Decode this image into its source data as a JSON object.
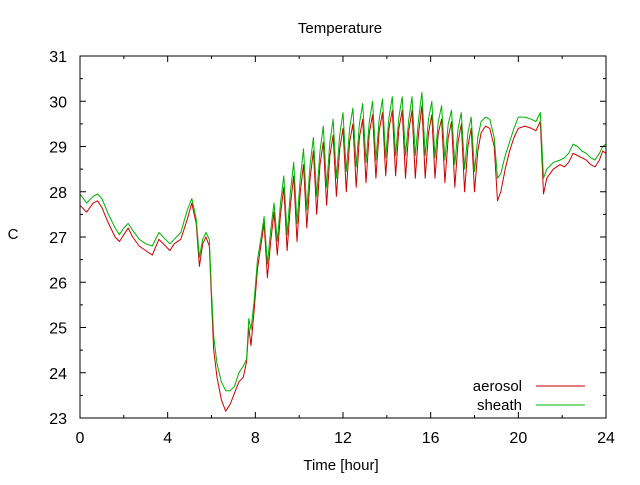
{
  "chart_data": {
    "type": "line",
    "title": "Temperature",
    "xlabel": "Time [hour]",
    "ylabel": "C",
    "xlim": [
      0,
      24
    ],
    "ylim": [
      23,
      31
    ],
    "x_ticks": [
      0,
      4,
      8,
      12,
      16,
      20,
      24
    ],
    "y_ticks": [
      23,
      24,
      25,
      26,
      27,
      28,
      29,
      30,
      31
    ],
    "grid": false,
    "legend_position": "bottom-right",
    "series": [
      {
        "name": "aerosol",
        "color": "#cc0000",
        "points": [
          [
            0,
            27.7
          ],
          [
            0.3,
            27.55
          ],
          [
            0.6,
            27.75
          ],
          [
            0.8,
            27.8
          ],
          [
            1.0,
            27.65
          ],
          [
            1.3,
            27.3
          ],
          [
            1.6,
            27.0
          ],
          [
            1.8,
            26.9
          ],
          [
            2.0,
            27.05
          ],
          [
            2.2,
            27.2
          ],
          [
            2.4,
            27.0
          ],
          [
            2.7,
            26.8
          ],
          [
            3.0,
            26.7
          ],
          [
            3.3,
            26.6
          ],
          [
            3.6,
            26.95
          ],
          [
            3.9,
            26.8
          ],
          [
            4.1,
            26.7
          ],
          [
            4.3,
            26.85
          ],
          [
            4.6,
            26.95
          ],
          [
            4.9,
            27.4
          ],
          [
            5.1,
            27.75
          ],
          [
            5.3,
            27.3
          ],
          [
            5.45,
            26.35
          ],
          [
            5.6,
            26.85
          ],
          [
            5.75,
            27.0
          ],
          [
            5.9,
            26.8
          ],
          [
            6.0,
            25.6
          ],
          [
            6.1,
            24.5
          ],
          [
            6.25,
            23.9
          ],
          [
            6.45,
            23.4
          ],
          [
            6.65,
            23.15
          ],
          [
            6.85,
            23.3
          ],
          [
            7.05,
            23.55
          ],
          [
            7.25,
            23.8
          ],
          [
            7.45,
            23.9
          ],
          [
            7.6,
            24.25
          ],
          [
            7.7,
            25.0
          ],
          [
            7.8,
            24.6
          ],
          [
            7.95,
            25.4
          ],
          [
            8.1,
            26.3
          ],
          [
            8.25,
            26.8
          ],
          [
            8.4,
            27.3
          ],
          [
            8.55,
            26.1
          ],
          [
            8.7,
            26.9
          ],
          [
            8.85,
            27.55
          ],
          [
            9.0,
            26.6
          ],
          [
            9.15,
            27.5
          ],
          [
            9.3,
            28.1
          ],
          [
            9.45,
            26.7
          ],
          [
            9.6,
            27.7
          ],
          [
            9.75,
            28.35
          ],
          [
            9.9,
            26.9
          ],
          [
            10.05,
            28.0
          ],
          [
            10.2,
            28.6
          ],
          [
            10.35,
            27.2
          ],
          [
            10.5,
            28.3
          ],
          [
            10.65,
            28.9
          ],
          [
            10.8,
            27.5
          ],
          [
            10.95,
            28.6
          ],
          [
            11.1,
            29.1
          ],
          [
            11.25,
            27.7
          ],
          [
            11.4,
            28.8
          ],
          [
            11.55,
            29.25
          ],
          [
            11.7,
            27.9
          ],
          [
            11.85,
            28.95
          ],
          [
            12.0,
            29.4
          ],
          [
            12.15,
            28.0
          ],
          [
            12.3,
            29.1
          ],
          [
            12.45,
            29.5
          ],
          [
            12.6,
            28.1
          ],
          [
            12.75,
            29.2
          ],
          [
            12.9,
            29.6
          ],
          [
            13.05,
            28.2
          ],
          [
            13.2,
            29.3
          ],
          [
            13.35,
            29.7
          ],
          [
            13.5,
            28.3
          ],
          [
            13.65,
            29.35
          ],
          [
            13.8,
            29.75
          ],
          [
            13.95,
            28.35
          ],
          [
            14.1,
            29.4
          ],
          [
            14.25,
            29.8
          ],
          [
            14.4,
            28.35
          ],
          [
            14.55,
            29.4
          ],
          [
            14.7,
            29.8
          ],
          [
            14.85,
            28.3
          ],
          [
            15.0,
            29.35
          ],
          [
            15.15,
            29.8
          ],
          [
            15.3,
            28.3
          ],
          [
            15.45,
            29.3
          ],
          [
            15.6,
            29.9
          ],
          [
            15.75,
            28.3
          ],
          [
            15.9,
            29.3
          ],
          [
            16.05,
            29.7
          ],
          [
            16.2,
            28.3
          ],
          [
            16.35,
            29.3
          ],
          [
            16.5,
            29.6
          ],
          [
            16.65,
            28.2
          ],
          [
            16.8,
            29.2
          ],
          [
            16.95,
            29.55
          ],
          [
            17.1,
            28.1
          ],
          [
            17.25,
            29.1
          ],
          [
            17.4,
            29.5
          ],
          [
            17.55,
            28.0
          ],
          [
            17.7,
            29.0
          ],
          [
            17.85,
            29.4
          ],
          [
            18.0,
            28.0
          ],
          [
            18.15,
            28.9
          ],
          [
            18.3,
            29.3
          ],
          [
            18.5,
            29.45
          ],
          [
            18.7,
            29.4
          ],
          [
            18.9,
            29.0
          ],
          [
            19.05,
            27.8
          ],
          [
            19.2,
            28.0
          ],
          [
            19.4,
            28.5
          ],
          [
            19.6,
            28.9
          ],
          [
            19.8,
            29.2
          ],
          [
            20.0,
            29.4
          ],
          [
            20.3,
            29.45
          ],
          [
            20.6,
            29.4
          ],
          [
            20.8,
            29.35
          ],
          [
            21.0,
            29.55
          ],
          [
            21.15,
            27.95
          ],
          [
            21.3,
            28.3
          ],
          [
            21.6,
            28.5
          ],
          [
            21.9,
            28.6
          ],
          [
            22.1,
            28.55
          ],
          [
            22.3,
            28.65
          ],
          [
            22.5,
            28.85
          ],
          [
            22.7,
            28.8
          ],
          [
            22.9,
            28.75
          ],
          [
            23.1,
            28.7
          ],
          [
            23.3,
            28.6
          ],
          [
            23.5,
            28.55
          ],
          [
            23.7,
            28.7
          ],
          [
            23.85,
            28.9
          ],
          [
            24.0,
            28.85
          ]
        ]
      },
      {
        "name": "sheath",
        "color": "#00b000",
        "points": [
          [
            0,
            27.95
          ],
          [
            0.3,
            27.75
          ],
          [
            0.6,
            27.9
          ],
          [
            0.8,
            27.95
          ],
          [
            1.0,
            27.85
          ],
          [
            1.3,
            27.5
          ],
          [
            1.6,
            27.2
          ],
          [
            1.8,
            27.05
          ],
          [
            2.0,
            27.2
          ],
          [
            2.2,
            27.3
          ],
          [
            2.4,
            27.15
          ],
          [
            2.7,
            26.95
          ],
          [
            3.0,
            26.85
          ],
          [
            3.3,
            26.8
          ],
          [
            3.6,
            27.1
          ],
          [
            3.9,
            26.95
          ],
          [
            4.1,
            26.85
          ],
          [
            4.3,
            26.95
          ],
          [
            4.6,
            27.1
          ],
          [
            4.9,
            27.6
          ],
          [
            5.1,
            27.85
          ],
          [
            5.3,
            27.4
          ],
          [
            5.45,
            26.55
          ],
          [
            5.6,
            26.95
          ],
          [
            5.75,
            27.1
          ],
          [
            5.9,
            26.95
          ],
          [
            6.0,
            25.8
          ],
          [
            6.1,
            24.8
          ],
          [
            6.25,
            24.2
          ],
          [
            6.45,
            23.8
          ],
          [
            6.65,
            23.6
          ],
          [
            6.85,
            23.6
          ],
          [
            7.05,
            23.7
          ],
          [
            7.25,
            24.0
          ],
          [
            7.45,
            24.15
          ],
          [
            7.6,
            24.3
          ],
          [
            7.7,
            25.2
          ],
          [
            7.8,
            24.95
          ],
          [
            7.95,
            25.6
          ],
          [
            8.1,
            26.5
          ],
          [
            8.25,
            26.95
          ],
          [
            8.4,
            27.45
          ],
          [
            8.55,
            26.4
          ],
          [
            8.7,
            27.15
          ],
          [
            8.85,
            27.75
          ],
          [
            9.0,
            26.9
          ],
          [
            9.15,
            27.75
          ],
          [
            9.3,
            28.35
          ],
          [
            9.45,
            27.05
          ],
          [
            9.6,
            28.0
          ],
          [
            9.75,
            28.65
          ],
          [
            9.9,
            27.3
          ],
          [
            10.05,
            28.3
          ],
          [
            10.2,
            28.95
          ],
          [
            10.35,
            27.6
          ],
          [
            10.5,
            28.6
          ],
          [
            10.65,
            29.2
          ],
          [
            10.8,
            27.9
          ],
          [
            10.95,
            28.9
          ],
          [
            11.1,
            29.45
          ],
          [
            11.25,
            28.1
          ],
          [
            11.4,
            29.1
          ],
          [
            11.55,
            29.6
          ],
          [
            11.7,
            28.3
          ],
          [
            11.85,
            29.25
          ],
          [
            12.0,
            29.75
          ],
          [
            12.15,
            28.45
          ],
          [
            12.3,
            29.4
          ],
          [
            12.45,
            29.85
          ],
          [
            12.6,
            28.55
          ],
          [
            12.75,
            29.5
          ],
          [
            12.9,
            29.95
          ],
          [
            13.05,
            28.65
          ],
          [
            13.2,
            29.55
          ],
          [
            13.35,
            30.0
          ],
          [
            13.5,
            28.7
          ],
          [
            13.65,
            29.6
          ],
          [
            13.8,
            30.05
          ],
          [
            13.95,
            28.75
          ],
          [
            14.1,
            29.65
          ],
          [
            14.25,
            30.1
          ],
          [
            14.4,
            28.8
          ],
          [
            14.55,
            29.65
          ],
          [
            14.7,
            30.1
          ],
          [
            14.85,
            28.8
          ],
          [
            15.0,
            29.6
          ],
          [
            15.15,
            30.1
          ],
          [
            15.3,
            28.8
          ],
          [
            15.45,
            29.6
          ],
          [
            15.6,
            30.2
          ],
          [
            15.75,
            28.8
          ],
          [
            15.9,
            29.6
          ],
          [
            16.05,
            30.0
          ],
          [
            16.2,
            28.75
          ],
          [
            16.35,
            29.55
          ],
          [
            16.5,
            29.9
          ],
          [
            16.65,
            28.7
          ],
          [
            16.8,
            29.5
          ],
          [
            16.95,
            29.8
          ],
          [
            17.1,
            28.6
          ],
          [
            17.25,
            29.4
          ],
          [
            17.4,
            29.75
          ],
          [
            17.55,
            28.5
          ],
          [
            17.7,
            29.3
          ],
          [
            17.85,
            29.65
          ],
          [
            18.0,
            28.45
          ],
          [
            18.15,
            29.2
          ],
          [
            18.3,
            29.55
          ],
          [
            18.5,
            29.65
          ],
          [
            18.7,
            29.6
          ],
          [
            18.9,
            29.2
          ],
          [
            19.05,
            28.3
          ],
          [
            19.2,
            28.4
          ],
          [
            19.4,
            28.8
          ],
          [
            19.6,
            29.1
          ],
          [
            19.8,
            29.4
          ],
          [
            20.0,
            29.65
          ],
          [
            20.3,
            29.65
          ],
          [
            20.6,
            29.6
          ],
          [
            20.8,
            29.55
          ],
          [
            21.0,
            29.75
          ],
          [
            21.15,
            28.3
          ],
          [
            21.3,
            28.5
          ],
          [
            21.6,
            28.65
          ],
          [
            21.9,
            28.7
          ],
          [
            22.1,
            28.75
          ],
          [
            22.3,
            28.85
          ],
          [
            22.5,
            29.05
          ],
          [
            22.7,
            29.0
          ],
          [
            22.9,
            28.9
          ],
          [
            23.1,
            28.85
          ],
          [
            23.3,
            28.75
          ],
          [
            23.5,
            28.7
          ],
          [
            23.7,
            28.85
          ],
          [
            23.85,
            29.0
          ],
          [
            24.0,
            29.05
          ]
        ]
      }
    ]
  }
}
